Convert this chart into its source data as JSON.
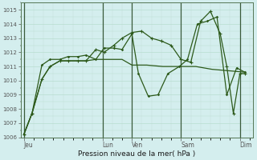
{
  "xlabel": "Pression niveau de la mer( hPa )",
  "ylim": [
    1006,
    1015.5
  ],
  "yticks": [
    1006,
    1007,
    1008,
    1009,
    1010,
    1011,
    1012,
    1013,
    1014,
    1015
  ],
  "day_labels": [
    "Jeu",
    "Lun",
    "Ven",
    "Sam",
    "Dim"
  ],
  "day_x_vals": [
    0,
    48,
    66,
    96,
    132
  ],
  "xlim": [
    -2,
    140
  ],
  "background_color": "#d4eeee",
  "grid_color_h": "#b8ddd0",
  "grid_color_v": "#c4ddd8",
  "line_color": "#2d5a1b",
  "series1_x": [
    0,
    5,
    11,
    16,
    22,
    27,
    33,
    38,
    44,
    49,
    55,
    60,
    66,
    70,
    75,
    80,
    85,
    90,
    95,
    100,
    105,
    110,
    115,
    120,
    125,
    130,
    135
  ],
  "series1_y": [
    1006.2,
    1007.7,
    1010.1,
    1011.0,
    1011.4,
    1011.4,
    1011.4,
    1011.4,
    1011.5,
    1011.5,
    1011.5,
    1011.5,
    1011.1,
    1011.1,
    1011.1,
    1011.05,
    1011.0,
    1011.0,
    1011.0,
    1011.0,
    1011.0,
    1010.9,
    1010.8,
    1010.75,
    1010.7,
    1010.65,
    1010.6
  ],
  "series2_x": [
    0,
    5,
    11,
    16,
    22,
    27,
    33,
    38,
    44,
    49,
    55,
    60,
    66,
    70,
    76,
    82,
    88,
    95,
    100,
    106,
    112,
    118,
    124,
    130,
    135
  ],
  "series2_y": [
    1006.2,
    1007.7,
    1011.1,
    1011.5,
    1011.5,
    1011.7,
    1011.7,
    1011.8,
    1011.5,
    1012.3,
    1012.3,
    1012.2,
    1013.3,
    1010.5,
    1008.9,
    1009.0,
    1010.5,
    1011.0,
    1011.5,
    1014.0,
    1014.2,
    1014.5,
    1009.0,
    1010.9,
    1010.6
  ],
  "series3_x": [
    0,
    5,
    11,
    16,
    22,
    27,
    33,
    38,
    44,
    49,
    55,
    60,
    66,
    72,
    78,
    84,
    90,
    96,
    102,
    108,
    114,
    120,
    124,
    128,
    132,
    135
  ],
  "series3_y": [
    1006.2,
    1007.7,
    1010.1,
    1011.0,
    1011.4,
    1011.4,
    1011.4,
    1011.4,
    1012.2,
    1012.0,
    1012.5,
    1013.0,
    1013.4,
    1013.5,
    1013.0,
    1012.8,
    1012.5,
    1011.5,
    1011.3,
    1014.2,
    1014.9,
    1013.3,
    1011.0,
    1007.7,
    1010.5,
    1010.5
  ],
  "marker_size": 3.0,
  "linewidth": 0.9
}
